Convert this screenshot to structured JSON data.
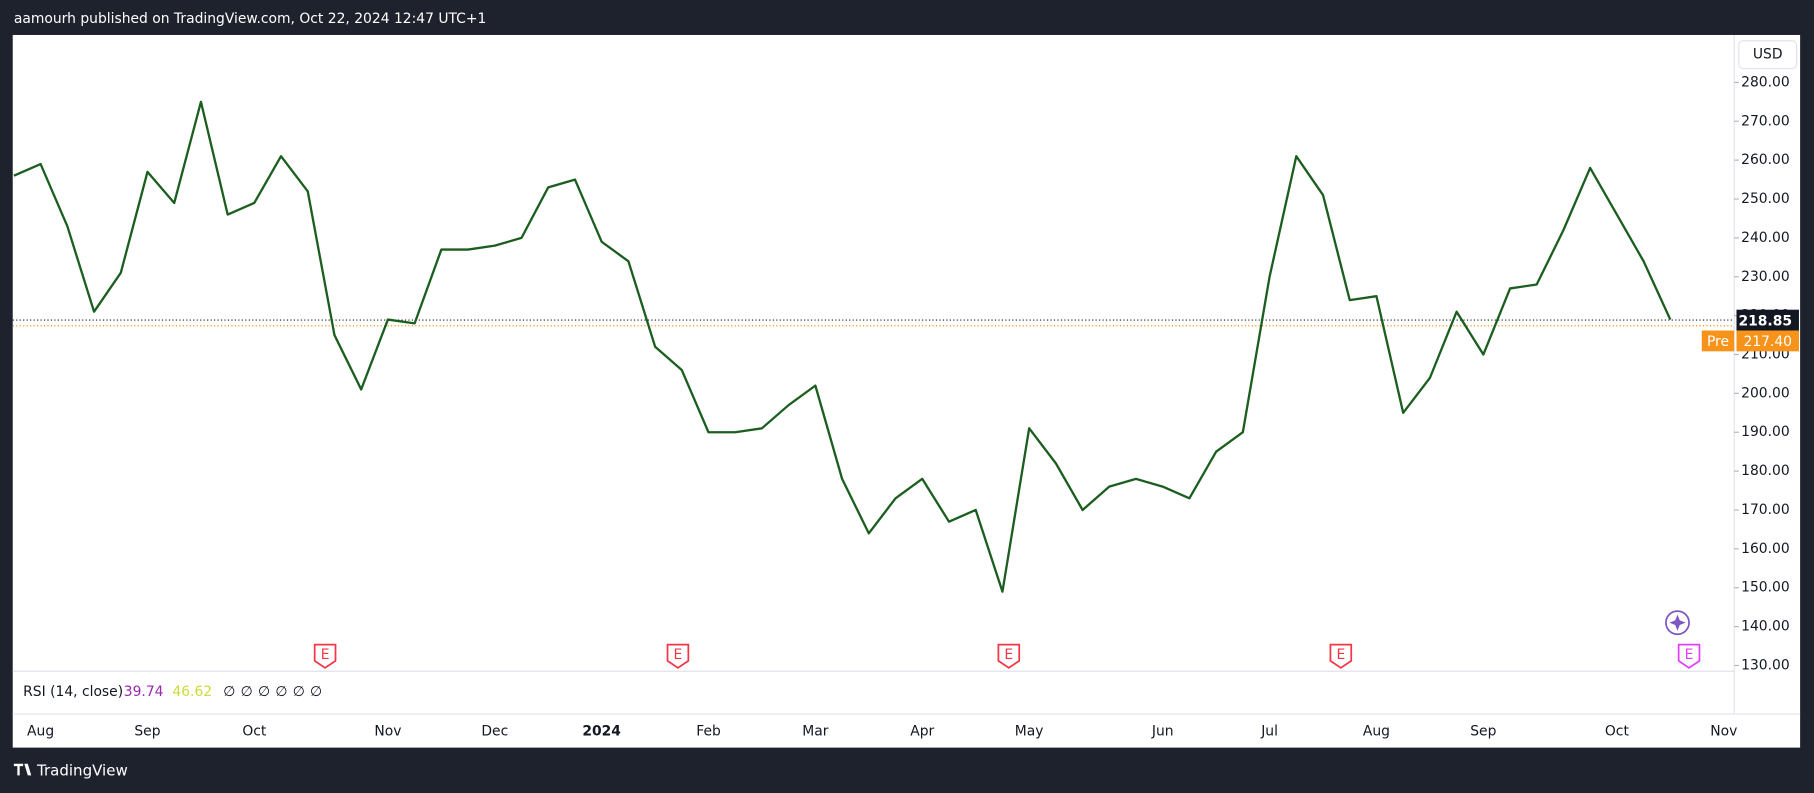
{
  "header": "aamourh published on TradingView.com, Oct 22, 2024 12:47 UTC+1",
  "brand": "TradingView",
  "chart_data": {
    "type": "line",
    "currency": "USD",
    "categories": [
      null,
      "Aug",
      null,
      null,
      null,
      "Sep",
      null,
      null,
      null,
      "Oct",
      null,
      null,
      null,
      null,
      "Nov",
      null,
      null,
      null,
      "Dec",
      null,
      null,
      null,
      "2024",
      null,
      null,
      null,
      "Feb",
      null,
      null,
      null,
      "Mar",
      null,
      null,
      null,
      "Apr",
      null,
      null,
      null,
      "May",
      null,
      null,
      null,
      null,
      "Jun",
      null,
      null,
      null,
      "Jul",
      null,
      null,
      null,
      "Aug",
      null,
      null,
      null,
      "Sep",
      null,
      null,
      null,
      null,
      "Oct",
      null,
      null,
      null,
      "Nov"
    ],
    "values": [
      256,
      259,
      243,
      221,
      231,
      257,
      249,
      275,
      246,
      249,
      261,
      252,
      215,
      201,
      219,
      218,
      237,
      237,
      238,
      240,
      253,
      255,
      239,
      234,
      212,
      206,
      190,
      190,
      191,
      197,
      202,
      178,
      164,
      173,
      178,
      167,
      170,
      149,
      191,
      182,
      170,
      176,
      178,
      176,
      173,
      185,
      190,
      230,
      261,
      251,
      224,
      225,
      195,
      204,
      221,
      210,
      227,
      228,
      242,
      258,
      246,
      234,
      219,
      null,
      null
    ],
    "color": "#1b5e20",
    "ylim": [
      125,
      285
    ],
    "yticks": [
      {
        "value": 130,
        "label": "130.00"
      },
      {
        "value": 140,
        "label": "140.00"
      },
      {
        "value": 150,
        "label": "150.00"
      },
      {
        "value": 160,
        "label": "160.00"
      },
      {
        "value": 170,
        "label": "170.00"
      },
      {
        "value": 180,
        "label": "180.00"
      },
      {
        "value": 190,
        "label": "190.00"
      },
      {
        "value": 200,
        "label": "200.00"
      },
      {
        "value": 210,
        "label": "210.00"
      },
      {
        "value": 220,
        "label": "220.00"
      },
      {
        "value": 230,
        "label": "230.00"
      },
      {
        "value": 240,
        "label": "240.00"
      },
      {
        "value": 250,
        "label": "250.00"
      },
      {
        "value": 260,
        "label": "260.00"
      },
      {
        "value": 270,
        "label": "270.00"
      },
      {
        "value": 280,
        "label": "280.00"
      }
    ],
    "last_price": 218.85,
    "premarket_label": "Pre",
    "premarket_price": {
      "value": 217.4,
      "label": "217.40"
    },
    "earnings": [
      "E",
      "E",
      "E",
      "E",
      "E"
    ],
    "indicator_label": "RSI (14, close)",
    "indicator_values": [
      39.74,
      46.62
    ],
    "indicator_colors": [
      "#9c27b0",
      "#cddc39"
    ],
    "indicator_placeholders": [
      "∅",
      "∅",
      "∅",
      "∅",
      "∅",
      "∅"
    ]
  }
}
